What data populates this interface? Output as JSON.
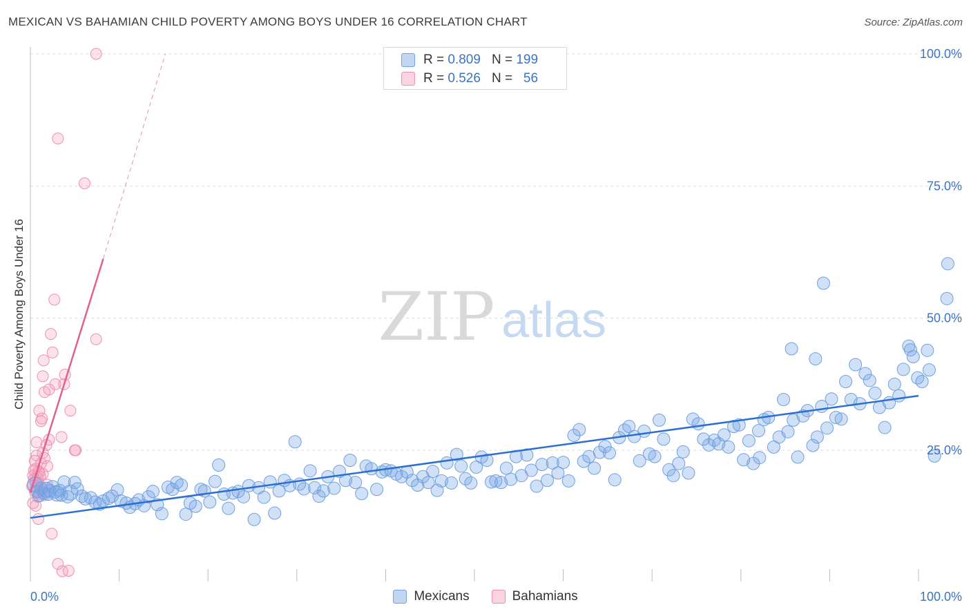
{
  "title": "MEXICAN VS BAHAMIAN CHILD POVERTY AMONG BOYS UNDER 16 CORRELATION CHART",
  "source": "Source: ZipAtlas.com",
  "colors": {
    "mexicans": "#6fa0e0",
    "mexicans_fill": "rgba(120,165,230,0.35)",
    "mexicans_line": "#2c6fd0",
    "bahamians": "#ef8fb0",
    "bahamians_fill": "rgba(245,160,190,0.30)",
    "bahamians_line": "#e06090",
    "axis_text": "#3a73c4",
    "grid": "#dddddd"
  },
  "legend": {
    "rows": [
      {
        "series": "Mexicans",
        "r_label": "R =",
        "r_value": "0.809",
        "n_label": "N =",
        "n_value": "199"
      },
      {
        "series": "Bahamians",
        "r_label": "R =",
        "r_value": "0.526",
        "n_label": "N =",
        "n_value": "56"
      }
    ]
  },
  "bottom_legend": [
    "Mexicans",
    "Bahamians"
  ],
  "watermark": {
    "zip": "ZIP",
    "atlas": "atlas"
  },
  "chart_data": {
    "type": "scatter",
    "title": "MEXICAN VS BAHAMIAN CHILD POVERTY AMONG BOYS UNDER 16 CORRELATION CHART",
    "xlabel": "",
    "ylabel": "Child Poverty Among Boys Under 16",
    "xlim": [
      0,
      100
    ],
    "ylim": [
      0,
      100
    ],
    "x_tick_labels": [
      "0.0%",
      "100.0%"
    ],
    "y_tick_labels": [
      "25.0%",
      "50.0%",
      "75.0%",
      "100.0%"
    ],
    "y_ticks": [
      25,
      50,
      75,
      100
    ],
    "grid": true,
    "legend_position": "top-center",
    "series": [
      {
        "name": "Mexicans",
        "r": 0.809,
        "n": 199,
        "trend": {
          "x": [
            0,
            100
          ],
          "y": [
            12.2,
            35.3
          ]
        },
        "points": [
          [
            0.5,
            18.5
          ],
          [
            0.8,
            17.2
          ],
          [
            1.0,
            16.4
          ],
          [
            1.2,
            17.8
          ],
          [
            1.5,
            16.9
          ],
          [
            1.8,
            17.5
          ],
          [
            2.0,
            16.7
          ],
          [
            2.2,
            17.3
          ],
          [
            2.5,
            18.1
          ],
          [
            2.8,
            17.1
          ],
          [
            3.0,
            16.8
          ],
          [
            3.3,
            17.4
          ],
          [
            3.5,
            16.5
          ],
          [
            3.8,
            19.0
          ],
          [
            4.2,
            16.2
          ],
          [
            4.5,
            17.0
          ],
          [
            5.0,
            18.9
          ],
          [
            5.3,
            17.7
          ],
          [
            5.8,
            16.3
          ],
          [
            6.2,
            15.8
          ],
          [
            6.8,
            16.0
          ],
          [
            7.3,
            15.2
          ],
          [
            7.8,
            14.8
          ],
          [
            8.2,
            15.4
          ],
          [
            8.8,
            15.9
          ],
          [
            9.2,
            16.3
          ],
          [
            9.8,
            17.5
          ],
          [
            10.2,
            15.4
          ],
          [
            10.8,
            15.0
          ],
          [
            11.2,
            14.2
          ],
          [
            11.8,
            14.9
          ],
          [
            12.2,
            15.6
          ],
          [
            12.8,
            14.5
          ],
          [
            13.3,
            16.2
          ],
          [
            13.8,
            17.2
          ],
          [
            14.3,
            14.7
          ],
          [
            14.8,
            13.0
          ],
          [
            15.5,
            18.0
          ],
          [
            16.0,
            17.6
          ],
          [
            16.5,
            18.9
          ],
          [
            17.0,
            18.4
          ],
          [
            17.5,
            12.9
          ],
          [
            18.0,
            15.0
          ],
          [
            18.6,
            14.4
          ],
          [
            19.2,
            17.6
          ],
          [
            19.6,
            17.3
          ],
          [
            20.2,
            15.2
          ],
          [
            20.8,
            19.1
          ],
          [
            21.2,
            22.2
          ],
          [
            21.8,
            16.7
          ],
          [
            22.3,
            14.0
          ],
          [
            22.8,
            16.9
          ],
          [
            23.4,
            17.2
          ],
          [
            24.0,
            16.2
          ],
          [
            24.6,
            18.3
          ],
          [
            25.2,
            11.9
          ],
          [
            25.7,
            17.9
          ],
          [
            26.3,
            16.1
          ],
          [
            27.0,
            19.0
          ],
          [
            27.5,
            13.1
          ],
          [
            28.0,
            17.3
          ],
          [
            28.6,
            19.3
          ],
          [
            29.2,
            18.3
          ],
          [
            29.8,
            26.6
          ],
          [
            30.3,
            18.6
          ],
          [
            30.8,
            17.7
          ],
          [
            31.5,
            21.1
          ],
          [
            32.0,
            17.9
          ],
          [
            32.5,
            16.3
          ],
          [
            33.0,
            17.3
          ],
          [
            33.5,
            20.0
          ],
          [
            34.2,
            17.8
          ],
          [
            34.8,
            21.0
          ],
          [
            35.5,
            19.3
          ],
          [
            36.0,
            23.1
          ],
          [
            36.6,
            18.9
          ],
          [
            37.3,
            16.8
          ],
          [
            37.8,
            22.0
          ],
          [
            38.4,
            21.5
          ],
          [
            39.0,
            17.6
          ],
          [
            39.6,
            20.9
          ],
          [
            40.0,
            21.3
          ],
          [
            40.6,
            21.1
          ],
          [
            41.2,
            20.5
          ],
          [
            41.8,
            20.0
          ],
          [
            42.4,
            20.9
          ],
          [
            43.0,
            19.3
          ],
          [
            43.6,
            18.4
          ],
          [
            44.2,
            20.0
          ],
          [
            44.8,
            18.9
          ],
          [
            45.3,
            21.0
          ],
          [
            45.8,
            17.4
          ],
          [
            46.3,
            19.2
          ],
          [
            46.9,
            22.6
          ],
          [
            47.4,
            18.8
          ],
          [
            48.0,
            24.2
          ],
          [
            48.5,
            22.0
          ],
          [
            49.0,
            19.6
          ],
          [
            49.6,
            18.8
          ],
          [
            50.2,
            21.8
          ],
          [
            50.8,
            23.7
          ],
          [
            51.4,
            23.1
          ],
          [
            51.9,
            19.0
          ],
          [
            52.4,
            19.2
          ],
          [
            53.0,
            18.9
          ],
          [
            53.6,
            21.6
          ],
          [
            54.1,
            19.5
          ],
          [
            54.7,
            23.8
          ],
          [
            55.3,
            20.2
          ],
          [
            55.9,
            24.1
          ],
          [
            56.4,
            21.2
          ],
          [
            57.0,
            18.2
          ],
          [
            57.6,
            22.3
          ],
          [
            58.2,
            19.3
          ],
          [
            58.8,
            22.6
          ],
          [
            59.4,
            20.7
          ],
          [
            60.0,
            22.7
          ],
          [
            60.6,
            19.2
          ],
          [
            61.2,
            27.8
          ],
          [
            61.8,
            28.9
          ],
          [
            62.3,
            22.9
          ],
          [
            62.9,
            23.8
          ],
          [
            63.5,
            21.6
          ],
          [
            64.1,
            24.6
          ],
          [
            64.7,
            25.7
          ],
          [
            65.2,
            24.5
          ],
          [
            65.8,
            19.4
          ],
          [
            66.3,
            27.4
          ],
          [
            66.9,
            28.8
          ],
          [
            67.4,
            29.5
          ],
          [
            68.0,
            27.6
          ],
          [
            68.6,
            23.0
          ],
          [
            69.1,
            28.6
          ],
          [
            69.7,
            24.3
          ],
          [
            70.3,
            23.8
          ],
          [
            70.8,
            30.7
          ],
          [
            71.3,
            27.1
          ],
          [
            71.9,
            21.3
          ],
          [
            72.4,
            20.2
          ],
          [
            73.0,
            22.5
          ],
          [
            73.5,
            24.7
          ],
          [
            74.1,
            20.7
          ],
          [
            74.6,
            30.9
          ],
          [
            75.2,
            30.0
          ],
          [
            75.8,
            27.1
          ],
          [
            76.4,
            26.0
          ],
          [
            77.0,
            26.9
          ],
          [
            77.5,
            26.2
          ],
          [
            78.1,
            27.9
          ],
          [
            78.6,
            25.6
          ],
          [
            79.2,
            29.5
          ],
          [
            79.8,
            29.8
          ],
          [
            80.3,
            23.2
          ],
          [
            80.9,
            26.8
          ],
          [
            81.4,
            22.5
          ],
          [
            82.0,
            28.7
          ],
          [
            82.6,
            30.8
          ],
          [
            83.1,
            31.2
          ],
          [
            83.7,
            25.6
          ],
          [
            84.3,
            27.5
          ],
          [
            84.8,
            34.6
          ],
          [
            85.3,
            28.5
          ],
          [
            85.9,
            30.7
          ],
          [
            86.4,
            23.7
          ],
          [
            87.0,
            31.5
          ],
          [
            87.5,
            32.5
          ],
          [
            88.1,
            25.9
          ],
          [
            88.6,
            27.5
          ],
          [
            89.1,
            33.3
          ],
          [
            89.7,
            29.2
          ],
          [
            90.2,
            34.7
          ],
          [
            90.7,
            31.2
          ],
          [
            91.3,
            30.9
          ],
          [
            91.8,
            38.0
          ],
          [
            92.4,
            34.6
          ],
          [
            92.9,
            41.2
          ],
          [
            93.4,
            33.8
          ],
          [
            94.0,
            39.5
          ],
          [
            94.5,
            38.2
          ],
          [
            95.1,
            35.8
          ],
          [
            95.6,
            33.1
          ],
          [
            96.2,
            29.3
          ],
          [
            96.7,
            34.0
          ],
          [
            97.3,
            37.5
          ],
          [
            97.8,
            35.3
          ],
          [
            98.3,
            40.3
          ],
          [
            98.9,
            44.7
          ],
          [
            99.4,
            42.7
          ],
          [
            99.9,
            38.7
          ],
          [
            101.0,
            43.9
          ],
          [
            99.1,
            44.0
          ],
          [
            100.4,
            38.0
          ],
          [
            101.2,
            40.2
          ],
          [
            103.3,
            60.3
          ],
          [
            103.2,
            53.7
          ],
          [
            101.8,
            23.9
          ],
          [
            89.3,
            56.6
          ],
          [
            88.4,
            42.3
          ],
          [
            85.7,
            44.2
          ],
          [
            82.1,
            23.6
          ]
        ]
      },
      {
        "name": "Bahamians",
        "r": 0.526,
        "n": 56,
        "trend": {
          "x": [
            0,
            8.2
          ],
          "y": [
            17.0,
            61.2
          ]
        },
        "trend_extension": {
          "x": [
            8.2,
            15.2
          ],
          "y": [
            61.2,
            100.0
          ]
        },
        "points": [
          [
            7.4,
            100.0
          ],
          [
            3.1,
            84.0
          ],
          [
            6.1,
            75.5
          ],
          [
            2.7,
            53.5
          ],
          [
            7.4,
            46.0
          ],
          [
            2.3,
            47.0
          ],
          [
            2.5,
            43.5
          ],
          [
            1.5,
            42.0
          ],
          [
            1.4,
            39.0
          ],
          [
            3.9,
            39.3
          ],
          [
            2.8,
            37.5
          ],
          [
            3.8,
            37.5
          ],
          [
            1.6,
            36.0
          ],
          [
            2.1,
            36.5
          ],
          [
            1.0,
            32.5
          ],
          [
            4.5,
            32.5
          ],
          [
            1.3,
            31.0
          ],
          [
            1.2,
            30.5
          ],
          [
            3.5,
            27.5
          ],
          [
            2.1,
            27.0
          ],
          [
            0.7,
            26.5
          ],
          [
            1.8,
            26.0
          ],
          [
            5.1,
            25.0
          ],
          [
            5.0,
            25.0
          ],
          [
            0.7,
            24.0
          ],
          [
            1.4,
            24.5
          ],
          [
            1.6,
            23.5
          ],
          [
            0.5,
            23.0
          ],
          [
            1.2,
            22.5
          ],
          [
            1.9,
            22.0
          ],
          [
            0.6,
            21.5
          ],
          [
            0.9,
            21.0
          ],
          [
            1.0,
            20.8
          ],
          [
            0.3,
            20.2
          ],
          [
            1.4,
            20.5
          ],
          [
            0.8,
            19.8
          ],
          [
            0.4,
            19.5
          ],
          [
            0.6,
            19.0
          ],
          [
            0.9,
            18.8
          ],
          [
            1.9,
            18.5
          ],
          [
            0.2,
            18.2
          ],
          [
            0.7,
            17.8
          ],
          [
            1.3,
            17.5
          ],
          [
            0.5,
            17.2
          ],
          [
            1.0,
            16.8
          ],
          [
            1.6,
            16.5
          ],
          [
            0.8,
            16.2
          ],
          [
            0.3,
            15.0
          ],
          [
            0.6,
            14.5
          ],
          [
            0.9,
            12.0
          ],
          [
            2.4,
            9.2
          ],
          [
            3.1,
            3.5
          ],
          [
            3.6,
            2.1
          ],
          [
            4.3,
            2.2
          ],
          [
            0.4,
            21.2
          ],
          [
            1.1,
            20.0
          ]
        ]
      }
    ]
  }
}
